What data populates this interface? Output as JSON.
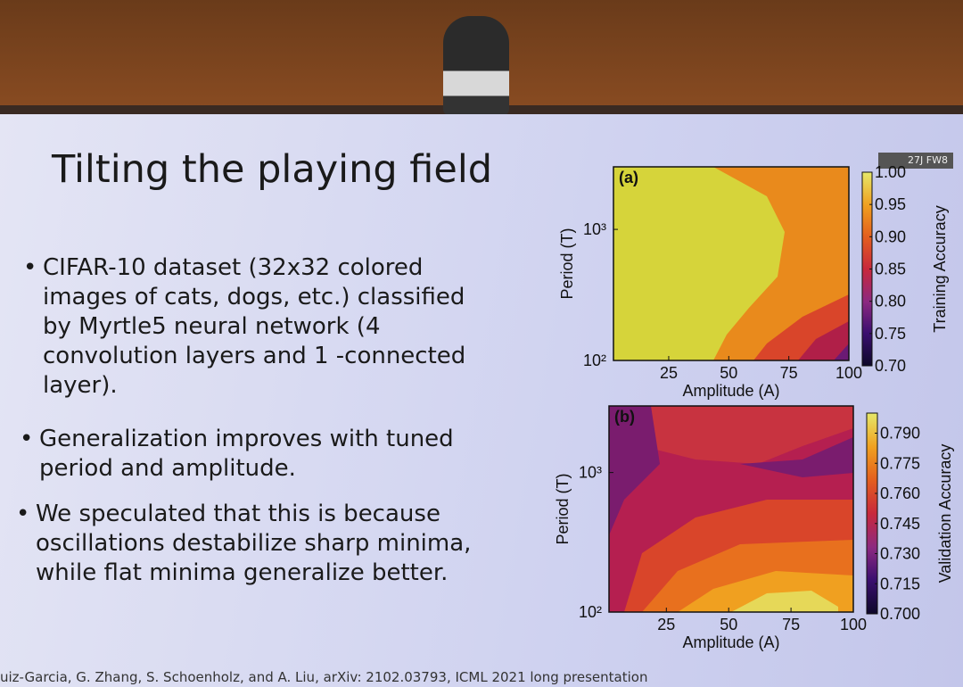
{
  "slide": {
    "title": "Tilting the playing field",
    "bullets": [
      "CIFAR-10 dataset (32x32 colored images of cats, dogs, etc.) classified by Myrtle5 neural network (4 convolution layers and 1 -connected layer).",
      "Generalization improves with tuned period and amplitude.",
      "We speculated that this is because oscillations destabilize sharp minima, while flat minima generalize better."
    ],
    "citation": "uiz-Garcia, G. Zhang, S. Schoenholz, and A. Liu, arXiv: 2102.03793, ICML 2021 long presentation",
    "plots": [
      {
        "label": "(a)",
        "xlabel": "Amplitude (A)",
        "ylabel": "Period (T)",
        "xlim": [
          2,
          100
        ],
        "xticks": [
          25,
          50,
          75,
          100
        ],
        "ylim": [
          100,
          3000
        ],
        "log_y": true,
        "yticks": [
          {
            "value": 100,
            "label": "10²"
          },
          {
            "value": 1000,
            "label": "10³"
          }
        ],
        "colorbar": {
          "label": "Training Accuracy",
          "lim": [
            0.7,
            1.0
          ],
          "ticks": [
            {
              "value": 0.7,
              "label": "0.70"
            },
            0.75,
            {
              "value": 0.8,
              "label": "0.80"
            },
            0.85,
            {
              "value": 0.9,
              "label": "0.90"
            },
            0.95,
            {
              "value": 1.0,
              "label": "1.00"
            }
          ]
        }
      },
      {
        "label": "(b)",
        "xlabel": "Amplitude (A)",
        "ylabel": "Period (T)",
        "xlim": [
          2,
          100
        ],
        "xticks": [
          25,
          50,
          75,
          100
        ],
        "ylim": [
          100,
          3000
        ],
        "log_y": true,
        "yticks": [
          {
            "value": 100,
            "label": "10²"
          },
          {
            "value": 1000,
            "label": "10³"
          }
        ],
        "colorbar": {
          "label": "Validation Accuracy",
          "lim": [
            0.7,
            0.8
          ],
          "ticks": [
            {
              "value": 0.7,
              "label": "0.700"
            },
            {
              "value": 0.715,
              "label": "0.715"
            },
            {
              "value": 0.73,
              "label": "0.730"
            },
            {
              "value": 0.745,
              "label": "0.745"
            },
            {
              "value": 0.76,
              "label": "0.760"
            },
            {
              "value": 0.775,
              "label": "0.775"
            },
            {
              "value": 0.79,
              "label": "0.790"
            }
          ]
        }
      }
    ]
  },
  "camera_label": "27J FW8"
}
